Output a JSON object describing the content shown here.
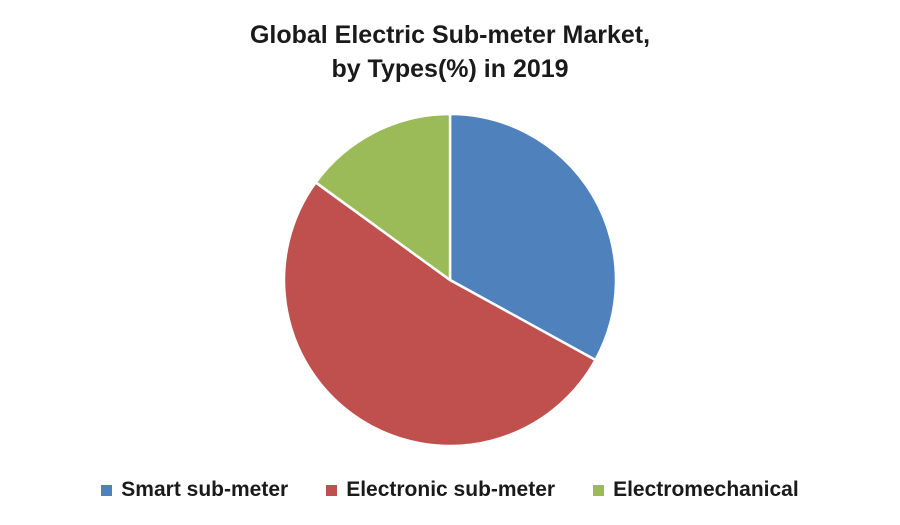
{
  "chart_data": {
    "type": "pie",
    "title_lines": [
      "Global Electric Sub-meter Market,",
      "by Types(%) in 2019"
    ],
    "start_angle_deg": 0,
    "direction": "clockwise",
    "categories": [
      "Smart sub-meter",
      "Electronic sub-meter",
      "Electromechanical"
    ],
    "values": [
      33,
      52,
      15
    ],
    "colors": [
      "#4f81bd",
      "#c0504d",
      "#9bbb59"
    ],
    "legend_position": "bottom"
  }
}
